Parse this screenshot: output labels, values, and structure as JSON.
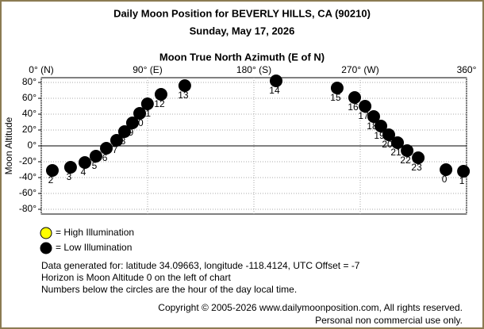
{
  "chart_data": {
    "type": "scatter",
    "title": "Daily Moon Position for BEVERLY HILLS, CA (90210)",
    "subtitle": "Sunday, May 17, 2026",
    "x_label": "Moon True North Azimuth (E of N)",
    "y_label": "Moon Altitude",
    "xlim": [
      0,
      360
    ],
    "ylim": [
      -86,
      86
    ],
    "xticks": [
      {
        "value": 0,
        "label": "0° (N)"
      },
      {
        "value": 90,
        "label": "90° (E)"
      },
      {
        "value": 180,
        "label": "180° (S)"
      },
      {
        "value": 270,
        "label": "270° (W)"
      },
      {
        "value": 360,
        "label": "360°"
      }
    ],
    "yticks": [
      {
        "value": 80,
        "label": "80°"
      },
      {
        "value": 60,
        "label": "60°"
      },
      {
        "value": 40,
        "label": "40°"
      },
      {
        "value": 20,
        "label": "20°"
      },
      {
        "value": 0,
        "label": "0°"
      },
      {
        "value": -20,
        "label": "-20°"
      },
      {
        "value": -40,
        "label": "-40°"
      },
      {
        "value": -60,
        "label": "-60°"
      },
      {
        "value": -80,
        "label": "-80°"
      }
    ],
    "grid": true,
    "series": [
      {
        "name": "= High Illumination",
        "color": "#ffff00",
        "x": [],
        "values": [],
        "labels": []
      },
      {
        "name": "= Low Illumination",
        "color": "#000000",
        "x": [
          9.4,
          24.8,
          36.9,
          46.3,
          55.1,
          63.8,
          70.5,
          77.2,
          83.3,
          89.9,
          101.4,
          121.5,
          198.8,
          250.5,
          265.3,
          274.1,
          281.4,
          287.5,
          294.2,
          301.6,
          309.7,
          319.1,
          342.6,
          357.4
        ],
        "values": [
          -31,
          -27,
          -21,
          -13,
          -3,
          7,
          18,
          29,
          41,
          53,
          65,
          76,
          82,
          73,
          61,
          50,
          37,
          25,
          14,
          4,
          -6,
          -15,
          -30,
          -32
        ],
        "labels": [
          "2",
          "3",
          "4",
          "5",
          "6",
          "7",
          "8",
          "9",
          "10",
          "11",
          "12",
          "13",
          "14",
          "15",
          "16",
          "17",
          "18",
          "19",
          "20",
          "21",
          "22",
          "23",
          "0",
          "1"
        ]
      }
    ],
    "notes": [
      "Data generated for: latitude 34.09663, longitude -118.4124, UTC Offset = -7",
      "Horizon is Moon Altitude 0 on the left of chart",
      "Numbers below the circles are the hour of the day local time."
    ],
    "copyright": [
      "Copyright © 2005-2026 www.dailymoonposition.com, All rights reserved.",
      "Personal non commercial use only."
    ]
  }
}
